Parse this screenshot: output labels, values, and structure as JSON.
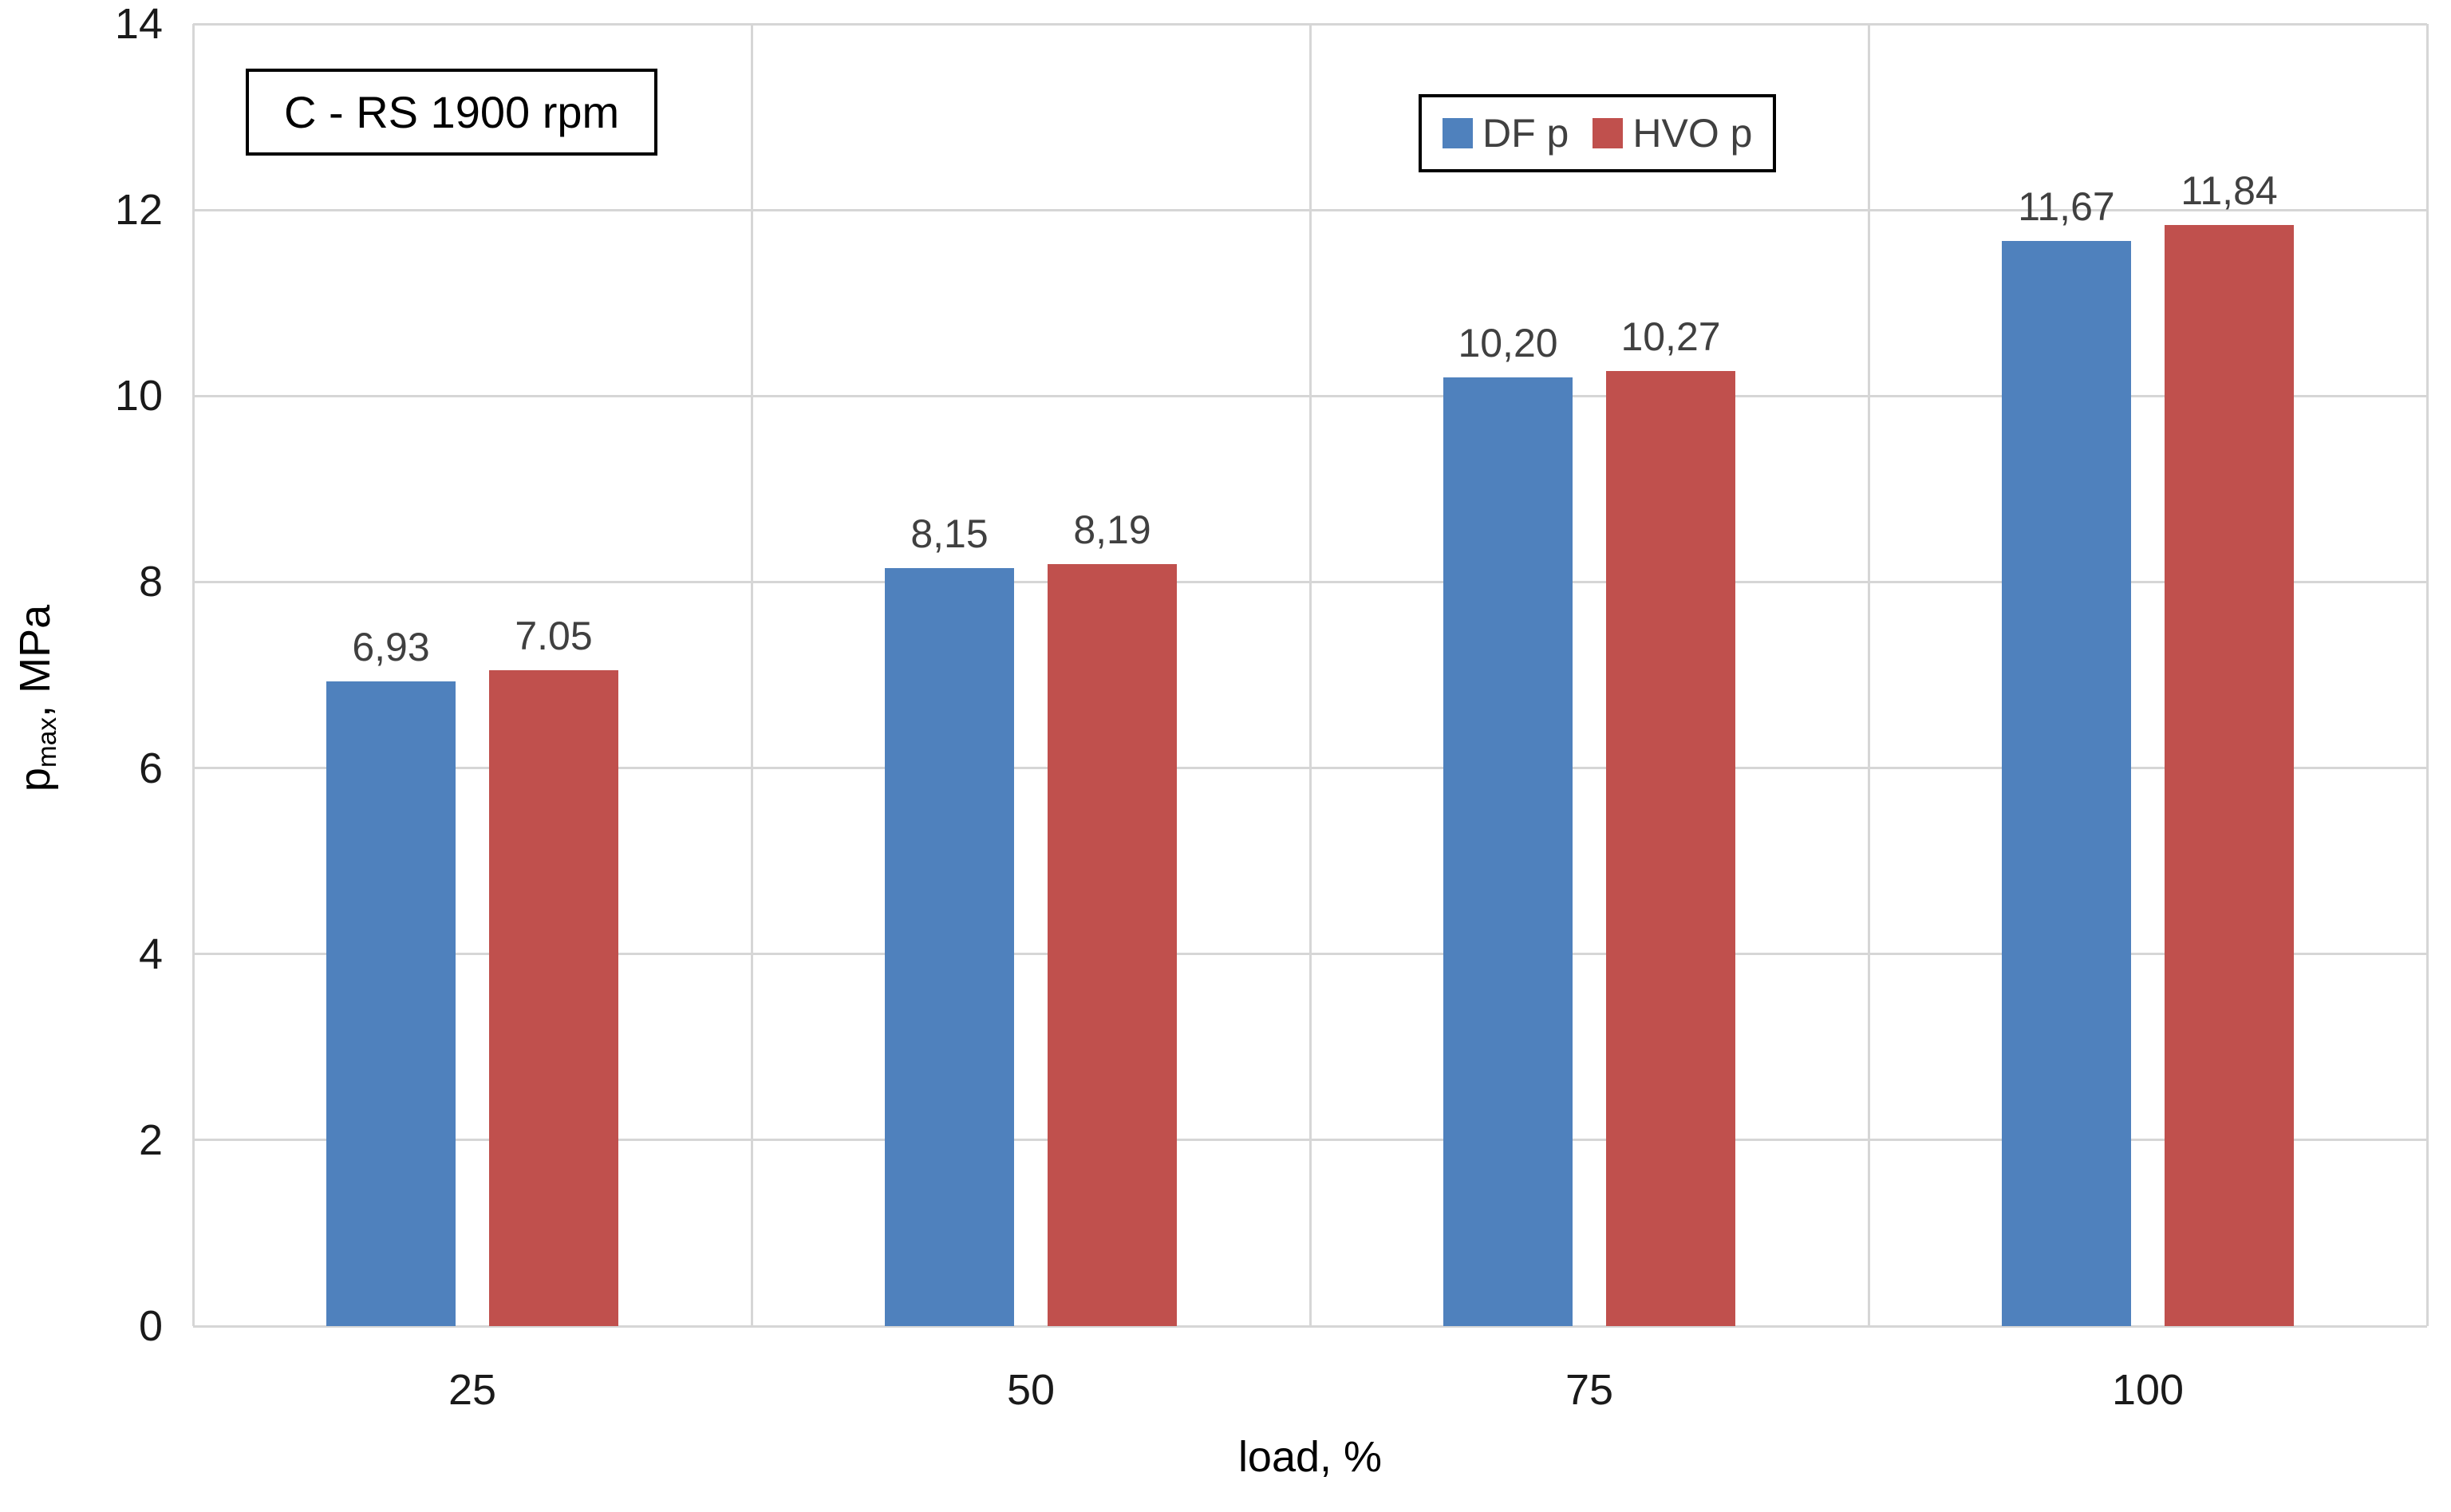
{
  "chart_data": {
    "type": "bar",
    "title_box": "C - RS 1900 rpm",
    "xlabel": "load, %",
    "ylabel": "pmax, MPa",
    "ylabel_parts": {
      "main": "p",
      "sub": "max",
      "unit": ", MPa"
    },
    "categories": [
      "25",
      "50",
      "75",
      "100"
    ],
    "series": [
      {
        "name": "DF p",
        "color": "#4F81BD",
        "values": [
          6.93,
          8.15,
          10.2,
          11.67
        ],
        "value_labels": [
          "6,93",
          "8,15",
          "10,20",
          "11,67"
        ]
      },
      {
        "name": "HVO p",
        "color": "#C0504D",
        "values": [
          7.05,
          8.19,
          10.27,
          11.84
        ],
        "value_labels": [
          "7.05",
          "8,19",
          "10,27",
          "11,84"
        ]
      }
    ],
    "ylim": [
      0,
      14
    ],
    "ytick_step": 2,
    "yticks": [
      "0",
      "2",
      "4",
      "6",
      "8",
      "10",
      "12",
      "14"
    ],
    "grid": "horizontal gridlines at every tick plus vertical category separators and plot border",
    "legend_position": "top-center",
    "colors": {
      "gridline": "#d6d6d6",
      "data_label": "#404040",
      "tick_label": "#1a1a1a",
      "legend_text": "#404040",
      "box_border": "#000000"
    }
  }
}
